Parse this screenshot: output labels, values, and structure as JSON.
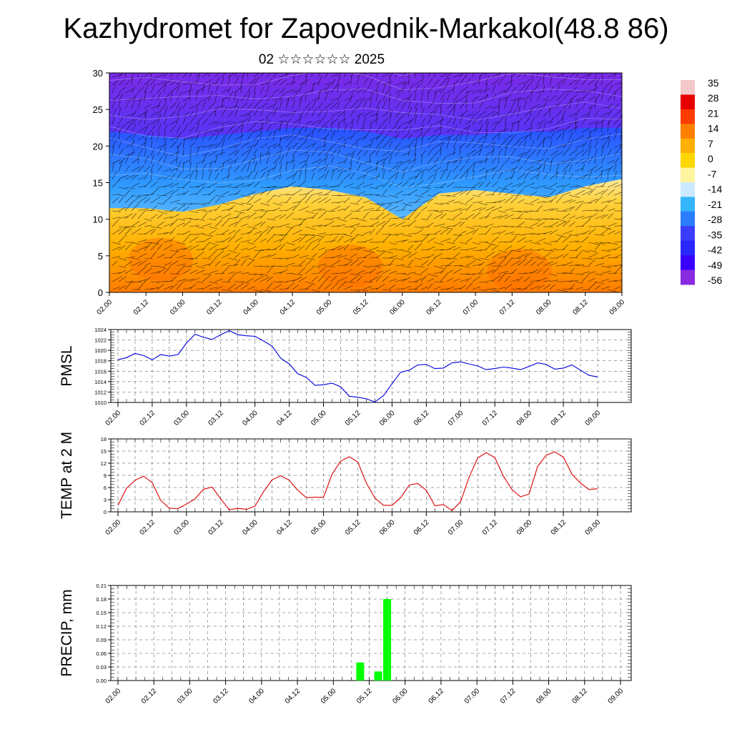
{
  "header": {
    "title": "Kazhydromet for Zapovednik-Markakol(48.8 86)",
    "subtitle": "02 ☆☆☆☆☆☆ 2025"
  },
  "colorbar": {
    "labels": [
      "35",
      "28",
      "21",
      "14",
      "7",
      "0",
      "-7",
      "-14",
      "-21",
      "-28",
      "-35",
      "-42",
      "-49",
      "-56"
    ],
    "colors": [
      "#f4c8c8",
      "#e60000",
      "#ff3c00",
      "#ff8000",
      "#ffb000",
      "#ffd700",
      "#fff5a0",
      "#cde9ff",
      "#33b5ff",
      "#2a7dff",
      "#3c3cff",
      "#2828ff",
      "#3a00ff",
      "#8a2be2"
    ]
  },
  "time_ticks": [
    "02.00",
    "02.12",
    "03.00",
    "03.12",
    "04.00",
    "04.12",
    "05.00",
    "05.12",
    "06.00",
    "06.12",
    "07.00",
    "07.12",
    "08.00",
    "08.12",
    "09.00"
  ],
  "chart_data": [
    {
      "type": "heatmap",
      "title": "",
      "ylim": [
        0,
        30
      ],
      "yticks": [
        "0",
        "5",
        "10",
        "15",
        "20",
        "25",
        "30"
      ],
      "x": [
        "02.00",
        "02.12",
        "03.00",
        "03.12",
        "04.00",
        "04.12",
        "05.00",
        "05.12",
        "06.00",
        "06.12",
        "07.00",
        "07.12",
        "08.00",
        "08.12",
        "09.00"
      ],
      "layer_boundaries": [
        {
          "name": "warm_top",
          "values": [
            11.5,
            11.5,
            11.0,
            12.0,
            13.5,
            14.5,
            14.0,
            13.0,
            10.0,
            13.5,
            14.0,
            13.5,
            13.0,
            14.5,
            15.5
          ]
        },
        {
          "name": "cold_bottom",
          "values": [
            22.0,
            21.5,
            21.0,
            21.5,
            22.0,
            22.5,
            22.5,
            22.0,
            21.0,
            21.5,
            21.5,
            22.0,
            22.0,
            22.5,
            22.5
          ]
        }
      ]
    },
    {
      "type": "line",
      "ylabel": "PMSL",
      "ylim": [
        1010,
        1024
      ],
      "yticks": [
        "1010",
        "1012",
        "1014",
        "1016",
        "1018",
        "1020",
        "1022",
        "1024"
      ],
      "series": [
        {
          "color": "#0000dd",
          "values": [
            1018.2,
            1018.6,
            1019.4,
            1019.0,
            1018.2,
            1019.2,
            1018.9,
            1019.2,
            1021.4,
            1023.1,
            1022.5,
            1022.1,
            1023.0,
            1023.8,
            1023.0,
            1022.8,
            1022.7,
            1021.8,
            1020.8,
            1018.5,
            1017.4,
            1015.5,
            1014.8,
            1013.3,
            1013.4,
            1013.7,
            1013.0,
            1011.2,
            1011.0,
            1010.7,
            1010.1,
            1011.3,
            1013.6,
            1015.8,
            1016.2,
            1017.2,
            1017.3,
            1016.5,
            1016.6,
            1017.6,
            1017.8,
            1017.4,
            1017.0,
            1016.3,
            1016.5,
            1016.8,
            1016.6,
            1016.3,
            1016.9,
            1017.6,
            1017.3,
            1016.4,
            1016.6,
            1017.2,
            1016.2,
            1015.2,
            1014.9
          ]
        }
      ]
    },
    {
      "type": "line",
      "ylabel": "TEMP at 2 M",
      "ylim": [
        0,
        18
      ],
      "yticks": [
        "0",
        "3",
        "6",
        "9",
        "12",
        "15",
        "18"
      ],
      "series": [
        {
          "color": "#dd0000",
          "values": [
            1.6,
            5.8,
            7.8,
            8.8,
            7.2,
            2.8,
            0.9,
            0.8,
            1.9,
            3.2,
            5.6,
            6.1,
            3.2,
            0.5,
            0.9,
            0.6,
            1.4,
            5.0,
            7.9,
            8.9,
            7.8,
            5.3,
            3.5,
            3.6,
            3.6,
            9.3,
            12.5,
            13.6,
            12.3,
            7.1,
            3.4,
            1.6,
            1.6,
            3.5,
            6.6,
            7.0,
            5.3,
            1.5,
            1.8,
            0.3,
            2.5,
            8.6,
            13.3,
            14.6,
            13.4,
            8.8,
            5.5,
            3.7,
            4.4,
            11.2,
            14.0,
            14.8,
            13.5,
            9.3,
            7.1,
            5.5,
            5.7
          ]
        }
      ]
    },
    {
      "type": "bar",
      "ylabel": "PRECIP, mm",
      "ylim": [
        0,
        0.21
      ],
      "yticks": [
        "0.00",
        "0.03",
        "0.06",
        "0.09",
        "0.12",
        "0.15",
        "0.18",
        "0.21"
      ],
      "color": "#00ff00",
      "bars": [
        {
          "x": "05.09",
          "value": 0.04
        },
        {
          "x": "05.15",
          "value": 0.02
        },
        {
          "x": "05.18",
          "value": 0.18
        }
      ]
    }
  ]
}
